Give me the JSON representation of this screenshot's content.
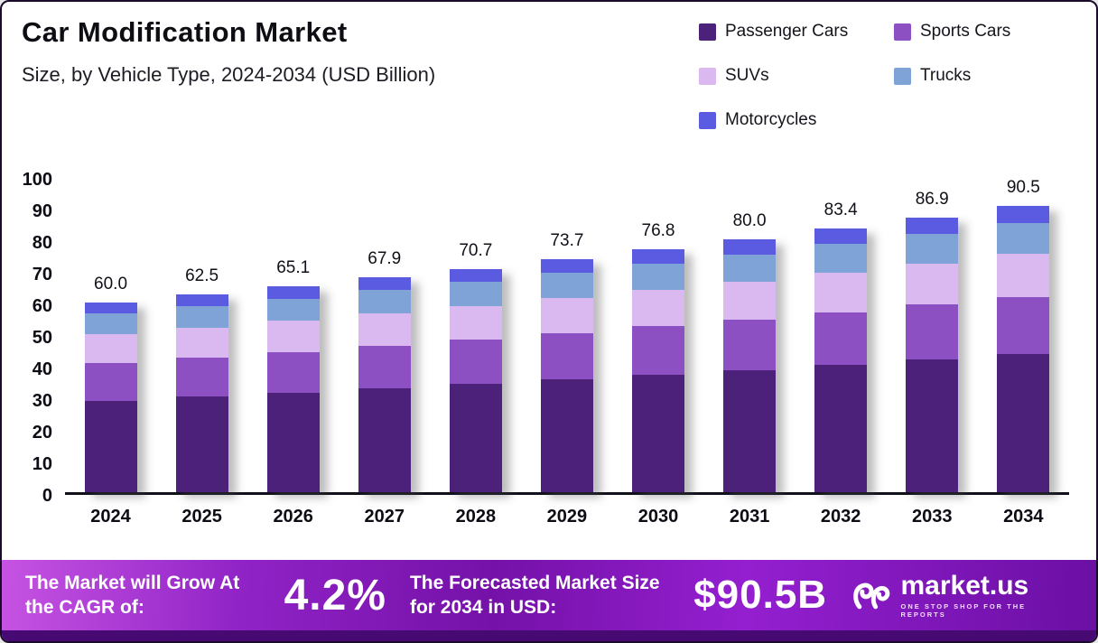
{
  "header": {
    "title": "Car Modification Market",
    "subtitle": "Size, by Vehicle Type, 2024-2034 (USD Billion)"
  },
  "chart_data": {
    "type": "bar",
    "stacked": true,
    "unit": "USD Billion",
    "grid": false,
    "legend_position": "top-right",
    "ylim": [
      0,
      100
    ],
    "yticks": [
      0,
      10,
      20,
      30,
      40,
      50,
      60,
      70,
      80,
      90,
      100
    ],
    "categories": [
      "2024",
      "2025",
      "2026",
      "2027",
      "2028",
      "2029",
      "2030",
      "2031",
      "2032",
      "2033",
      "2034"
    ],
    "totals": [
      60.0,
      62.5,
      65.1,
      67.9,
      70.7,
      73.7,
      76.8,
      80.0,
      83.4,
      86.9,
      90.5
    ],
    "series": [
      {
        "name": "Passenger Cars",
        "color": "#4b2179",
        "values": [
          29.0,
          30.2,
          31.4,
          32.8,
          34.2,
          35.6,
          37.1,
          38.6,
          40.3,
          42.0,
          43.7
        ]
      },
      {
        "name": "Sports Cars",
        "color": "#8d50c3",
        "values": [
          12.0,
          12.5,
          13.0,
          13.6,
          14.1,
          14.7,
          15.4,
          16.0,
          16.7,
          17.4,
          18.1
        ]
      },
      {
        "name": "SUVs",
        "color": "#d9b9ef",
        "values": [
          9.0,
          9.4,
          9.8,
          10.2,
          10.6,
          11.1,
          11.5,
          12.0,
          12.5,
          13.0,
          13.6
        ]
      },
      {
        "name": "Trucks",
        "color": "#7fa3d7",
        "values": [
          6.5,
          6.8,
          7.0,
          7.3,
          7.6,
          8.0,
          8.3,
          8.6,
          9.0,
          9.4,
          9.8
        ]
      },
      {
        "name": "Motorcycles",
        "color": "#5a5be0",
        "values": [
          3.5,
          3.6,
          3.9,
          4.0,
          4.2,
          4.3,
          4.5,
          4.8,
          4.9,
          5.1,
          5.3
        ]
      }
    ]
  },
  "footer": {
    "cagr_label": "The Market will Grow At the CAGR of:",
    "cagr_value": "4.2%",
    "forecast_label": "The Forecasted Market Size for 2034 in USD:",
    "forecast_value": "$90.5B",
    "brand_name": "market.us",
    "brand_tagline": "ONE STOP SHOP FOR THE REPORTS"
  }
}
